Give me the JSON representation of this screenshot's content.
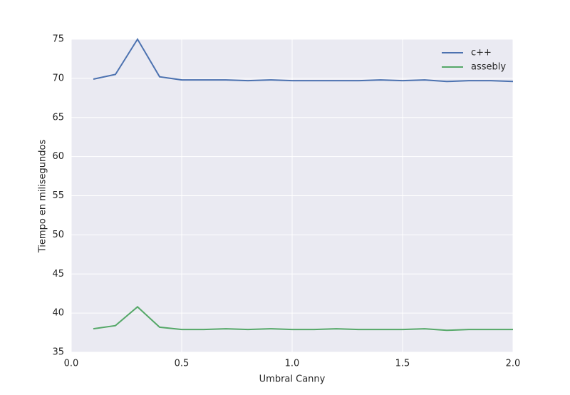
{
  "chart_data": {
    "type": "line",
    "xlabel": "Umbral Canny",
    "ylabel": "Tiempo en milisegundos",
    "x": [
      0.1,
      0.2,
      0.3,
      0.4,
      0.5,
      0.6,
      0.7,
      0.8,
      0.9,
      1.0,
      1.1,
      1.2,
      1.3,
      1.4,
      1.5,
      1.6,
      1.7,
      1.8,
      1.9,
      2.0
    ],
    "series": [
      {
        "name": "c++",
        "color": "#4c72b0",
        "values": [
          69.9,
          70.5,
          75.0,
          70.2,
          69.8,
          69.8,
          69.8,
          69.7,
          69.8,
          69.7,
          69.7,
          69.7,
          69.7,
          69.8,
          69.7,
          69.8,
          69.6,
          69.7,
          69.7,
          69.6
        ]
      },
      {
        "name": "assebly",
        "color": "#55a868",
        "values": [
          38.0,
          38.4,
          40.8,
          38.2,
          37.9,
          37.9,
          38.0,
          37.9,
          38.0,
          37.9,
          37.9,
          38.0,
          37.9,
          37.9,
          37.9,
          38.0,
          37.8,
          37.9,
          37.9,
          37.9
        ]
      }
    ],
    "xlim": [
      0.0,
      2.0
    ],
    "xticks": [
      {
        "value": 0.0,
        "label": "0.0"
      },
      0.5,
      {
        "value": 1.0,
        "label": "1.0"
      },
      1.5,
      {
        "value": 2.0,
        "label": "2.0"
      }
    ],
    "ylim": [
      35,
      75
    ],
    "yticks": [
      35,
      40,
      45,
      50,
      55,
      60,
      65,
      70,
      75
    ],
    "grid": true,
    "legend": "upper right"
  }
}
